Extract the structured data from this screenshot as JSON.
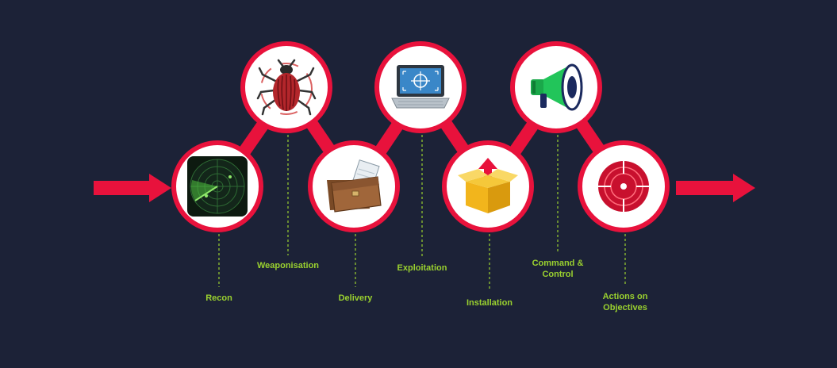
{
  "colors": {
    "background": "#1c2237",
    "accent": "#e8123c",
    "label": "#9ad12f",
    "node_fill": "#ffffff"
  },
  "stages": [
    {
      "label": "Recon",
      "icon": "radar-icon"
    },
    {
      "label": "Weaponisation",
      "icon": "bug-icon"
    },
    {
      "label": "Delivery",
      "icon": "briefcase-icon"
    },
    {
      "label": "Exploitation",
      "icon": "laptop-target-icon"
    },
    {
      "label": "Installation",
      "icon": "box-upload-icon"
    },
    {
      "label": "Command &\nControl",
      "icon": "megaphone-icon"
    },
    {
      "label": "Actions on\nObjectives",
      "icon": "target-icon"
    }
  ]
}
